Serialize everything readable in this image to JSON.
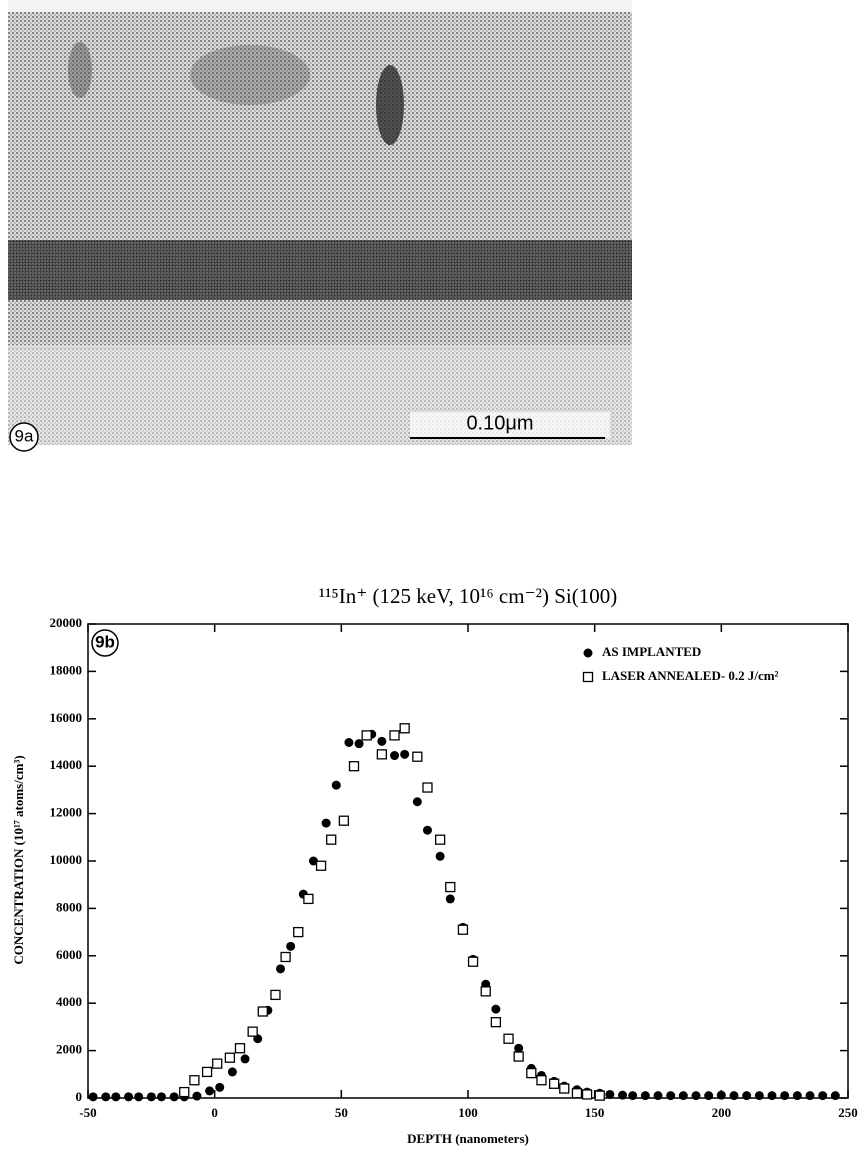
{
  "figure": {
    "panel_a": {
      "label": "9a",
      "scale_bar": "0.10μm"
    }
  },
  "chart_data": {
    "type": "scatter",
    "title": "¹¹⁵In⁺ (125 keV, 10¹⁶ cm⁻²) Si(100)",
    "panel_label": "9b",
    "x_label": "DEPTH (nanometers)",
    "y_label": "CONCENTRATION (10¹⁷ atoms/cm³)",
    "xlim": [
      -50,
      250
    ],
    "ylim": [
      0,
      20000
    ],
    "xticks": [
      -50,
      0,
      50,
      100,
      150,
      200,
      250
    ],
    "yticks": [
      0,
      2000,
      4000,
      6000,
      8000,
      10000,
      12000,
      14000,
      16000,
      18000,
      20000
    ],
    "legend": "upper right",
    "series": [
      {
        "name": "AS IMPLANTED",
        "marker": "circle",
        "color": "#000000",
        "x": [
          -48,
          -43,
          -39,
          -34,
          -30,
          -25,
          -21,
          -16,
          -12,
          -7,
          -2,
          2,
          7,
          12,
          17,
          21,
          26,
          30,
          35,
          39,
          44,
          48,
          53,
          57,
          62,
          66,
          71,
          75,
          80,
          84,
          89,
          93,
          98,
          102,
          107,
          111,
          116,
          120,
          125,
          129,
          134,
          138,
          143,
          147,
          152,
          156,
          161,
          165,
          170,
          175,
          180,
          185,
          190,
          195,
          200,
          205,
          210,
          215,
          220,
          225,
          230,
          235,
          240,
          245
        ],
        "values": [
          50,
          50,
          50,
          50,
          50,
          50,
          50,
          50,
          50,
          80,
          300,
          450,
          1100,
          1650,
          2500,
          3700,
          5450,
          6400,
          8600,
          10000,
          11600,
          13200,
          15000,
          14950,
          15350,
          15050,
          14450,
          14500,
          12500,
          11300,
          10200,
          8400,
          7200,
          5850,
          4800,
          3750,
          2500,
          2100,
          1250,
          950,
          700,
          500,
          350,
          250,
          200,
          150,
          120,
          100,
          100,
          100,
          100,
          100,
          100,
          100,
          120,
          100,
          100,
          100,
          100,
          100,
          100,
          100,
          100,
          100
        ]
      },
      {
        "name": "LASER ANNEALED- 0.2 J/cm²",
        "marker": "square",
        "color": "#000000",
        "x": [
          -12,
          -8,
          -3,
          1,
          6,
          10,
          15,
          19,
          24,
          28,
          33,
          37,
          42,
          46,
          51,
          55,
          60,
          66,
          71,
          75,
          80,
          84,
          89,
          93,
          98,
          102,
          107,
          111,
          116,
          120,
          125,
          129,
          134,
          138,
          143,
          147,
          152
        ],
        "values": [
          250,
          750,
          1100,
          1450,
          1700,
          2100,
          2800,
          3650,
          4350,
          5950,
          7000,
          8400,
          9800,
          10900,
          11700,
          14000,
          15300,
          14500,
          15300,
          15600,
          14400,
          13100,
          10900,
          8900,
          7100,
          5750,
          4500,
          3200,
          2500,
          1750,
          1050,
          750,
          600,
          400,
          200,
          150,
          100
        ]
      }
    ]
  }
}
